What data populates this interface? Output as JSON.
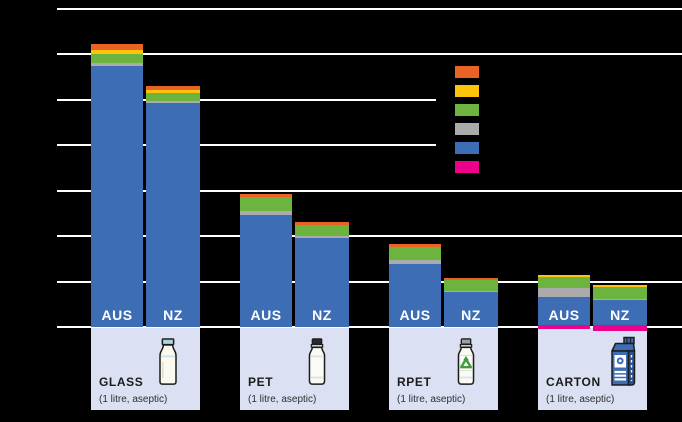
{
  "colors": {
    "background": "#000000",
    "gridline": "#FFFFFF",
    "panel_bg": "#DBE1F3",
    "bar_label_text": "#FFFFFF",
    "panel_text": "#1B1B1B"
  },
  "legend": {
    "position": "top-right",
    "labels_visible": false,
    "swatches": [
      "orange",
      "yellow",
      "green",
      "gray",
      "blue",
      "magenta"
    ]
  },
  "chart_data": {
    "type": "bar",
    "variant": "stacked-column",
    "grid": true,
    "y_axis": {
      "ylim": [
        0,
        700
      ],
      "gridline_step": 100,
      "tick_labels_visible": false
    },
    "x_tick_labels": [
      "AUS",
      "NZ"
    ],
    "segment_order_top_to_bottom": [
      "orange",
      "yellow",
      "green",
      "gray",
      "blue"
    ],
    "segment_colors": {
      "orange": "#E96424",
      "yellow": "#FFC20D",
      "green": "#6DB33F",
      "gray": "#ABABAB",
      "blue": "#3D6DB5",
      "magenta": "#EC008C"
    },
    "groups": [
      {
        "category": "GLASS",
        "sublabel": "(1 litre, aseptic)",
        "icon": "glass-bottle-icon",
        "bars": [
          {
            "label": "AUS",
            "total": 623,
            "segments": {
              "orange": 14,
              "yellow": 7,
              "green": 20,
              "gray": 8,
              "blue": 574,
              "magenta": 0
            }
          },
          {
            "label": "NZ",
            "total": 530,
            "segments": {
              "orange": 9,
              "yellow": 6,
              "green": 18,
              "gray": 4,
              "blue": 493,
              "magenta": 0
            }
          }
        ]
      },
      {
        "category": "PET",
        "sublabel": "(1 litre, aseptic)",
        "icon": "pet-bottle-icon",
        "bars": [
          {
            "label": "AUS",
            "total": 292,
            "segments": {
              "orange": 7,
              "yellow": 0,
              "green": 29,
              "gray": 9,
              "blue": 247,
              "magenta": 0
            }
          },
          {
            "label": "NZ",
            "total": 231,
            "segments": {
              "orange": 6,
              "yellow": 0,
              "green": 24,
              "gray": 5,
              "blue": 196,
              "magenta": 0
            }
          }
        ]
      },
      {
        "category": "RPET",
        "sublabel": "(1 litre, aseptic)",
        "icon": "rpet-bottle-icon",
        "bars": [
          {
            "label": "AUS",
            "total": 182,
            "segments": {
              "orange": 5,
              "yellow": 0,
              "green": 29,
              "gray": 9,
              "blue": 139,
              "magenta": 0
            }
          },
          {
            "label": "NZ",
            "total": 109,
            "segments": {
              "orange": 5,
              "yellow": 0,
              "green": 24,
              "gray": 4,
              "blue": 76,
              "magenta": 0
            }
          }
        ]
      },
      {
        "category": "CARTON",
        "sublabel": "(1 litre, aseptic)",
        "icon": "carton-icon",
        "bars": [
          {
            "label": "AUS",
            "total": 114,
            "segments": {
              "orange": 0,
              "yellow": 4,
              "green": 24,
              "gray": 20,
              "blue": 66,
              "magenta": 8
            }
          },
          {
            "label": "NZ",
            "total": 92,
            "segments": {
              "orange": 0,
              "yellow": 4,
              "green": 26,
              "gray": 2,
              "blue": 60,
              "magenta": 12
            }
          }
        ]
      }
    ]
  }
}
